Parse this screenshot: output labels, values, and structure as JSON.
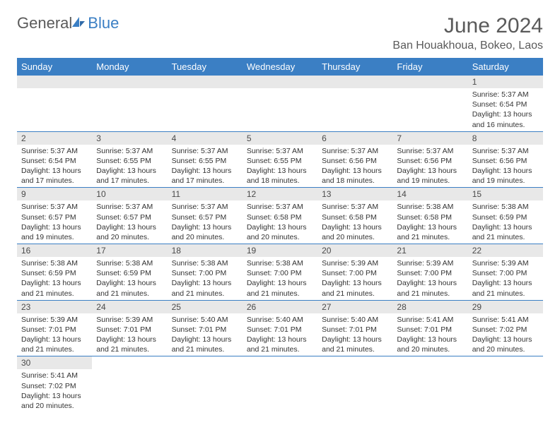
{
  "logo": {
    "general": "General",
    "blue": "Blue"
  },
  "title": "June 2024",
  "location": "Ban Houakhoua, Bokeo, Laos",
  "colors": {
    "header_bg": "#3b7fc4",
    "header_text": "#ffffff",
    "daynum_bg": "#e8e8e8",
    "border": "#3b7fc4",
    "text": "#333333",
    "title_text": "#5a5a5a"
  },
  "dayNames": [
    "Sunday",
    "Monday",
    "Tuesday",
    "Wednesday",
    "Thursday",
    "Friday",
    "Saturday"
  ],
  "firstDayOffset": 6,
  "daysInMonth": 30,
  "days": {
    "1": {
      "sunrise": "5:37 AM",
      "sunset": "6:54 PM",
      "daylight": "13 hours and 16 minutes."
    },
    "2": {
      "sunrise": "5:37 AM",
      "sunset": "6:54 PM",
      "daylight": "13 hours and 17 minutes."
    },
    "3": {
      "sunrise": "5:37 AM",
      "sunset": "6:55 PM",
      "daylight": "13 hours and 17 minutes."
    },
    "4": {
      "sunrise": "5:37 AM",
      "sunset": "6:55 PM",
      "daylight": "13 hours and 17 minutes."
    },
    "5": {
      "sunrise": "5:37 AM",
      "sunset": "6:55 PM",
      "daylight": "13 hours and 18 minutes."
    },
    "6": {
      "sunrise": "5:37 AM",
      "sunset": "6:56 PM",
      "daylight": "13 hours and 18 minutes."
    },
    "7": {
      "sunrise": "5:37 AM",
      "sunset": "6:56 PM",
      "daylight": "13 hours and 19 minutes."
    },
    "8": {
      "sunrise": "5:37 AM",
      "sunset": "6:56 PM",
      "daylight": "13 hours and 19 minutes."
    },
    "9": {
      "sunrise": "5:37 AM",
      "sunset": "6:57 PM",
      "daylight": "13 hours and 19 minutes."
    },
    "10": {
      "sunrise": "5:37 AM",
      "sunset": "6:57 PM",
      "daylight": "13 hours and 20 minutes."
    },
    "11": {
      "sunrise": "5:37 AM",
      "sunset": "6:57 PM",
      "daylight": "13 hours and 20 minutes."
    },
    "12": {
      "sunrise": "5:37 AM",
      "sunset": "6:58 PM",
      "daylight": "13 hours and 20 minutes."
    },
    "13": {
      "sunrise": "5:37 AM",
      "sunset": "6:58 PM",
      "daylight": "13 hours and 20 minutes."
    },
    "14": {
      "sunrise": "5:38 AM",
      "sunset": "6:58 PM",
      "daylight": "13 hours and 21 minutes."
    },
    "15": {
      "sunrise": "5:38 AM",
      "sunset": "6:59 PM",
      "daylight": "13 hours and 21 minutes."
    },
    "16": {
      "sunrise": "5:38 AM",
      "sunset": "6:59 PM",
      "daylight": "13 hours and 21 minutes."
    },
    "17": {
      "sunrise": "5:38 AM",
      "sunset": "6:59 PM",
      "daylight": "13 hours and 21 minutes."
    },
    "18": {
      "sunrise": "5:38 AM",
      "sunset": "7:00 PM",
      "daylight": "13 hours and 21 minutes."
    },
    "19": {
      "sunrise": "5:38 AM",
      "sunset": "7:00 PM",
      "daylight": "13 hours and 21 minutes."
    },
    "20": {
      "sunrise": "5:39 AM",
      "sunset": "7:00 PM",
      "daylight": "13 hours and 21 minutes."
    },
    "21": {
      "sunrise": "5:39 AM",
      "sunset": "7:00 PM",
      "daylight": "13 hours and 21 minutes."
    },
    "22": {
      "sunrise": "5:39 AM",
      "sunset": "7:00 PM",
      "daylight": "13 hours and 21 minutes."
    },
    "23": {
      "sunrise": "5:39 AM",
      "sunset": "7:01 PM",
      "daylight": "13 hours and 21 minutes."
    },
    "24": {
      "sunrise": "5:39 AM",
      "sunset": "7:01 PM",
      "daylight": "13 hours and 21 minutes."
    },
    "25": {
      "sunrise": "5:40 AM",
      "sunset": "7:01 PM",
      "daylight": "13 hours and 21 minutes."
    },
    "26": {
      "sunrise": "5:40 AM",
      "sunset": "7:01 PM",
      "daylight": "13 hours and 21 minutes."
    },
    "27": {
      "sunrise": "5:40 AM",
      "sunset": "7:01 PM",
      "daylight": "13 hours and 21 minutes."
    },
    "28": {
      "sunrise": "5:41 AM",
      "sunset": "7:01 PM",
      "daylight": "13 hours and 20 minutes."
    },
    "29": {
      "sunrise": "5:41 AM",
      "sunset": "7:02 PM",
      "daylight": "13 hours and 20 minutes."
    },
    "30": {
      "sunrise": "5:41 AM",
      "sunset": "7:02 PM",
      "daylight": "13 hours and 20 minutes."
    }
  },
  "labels": {
    "sunrise": "Sunrise:",
    "sunset": "Sunset:",
    "daylight": "Daylight:"
  }
}
